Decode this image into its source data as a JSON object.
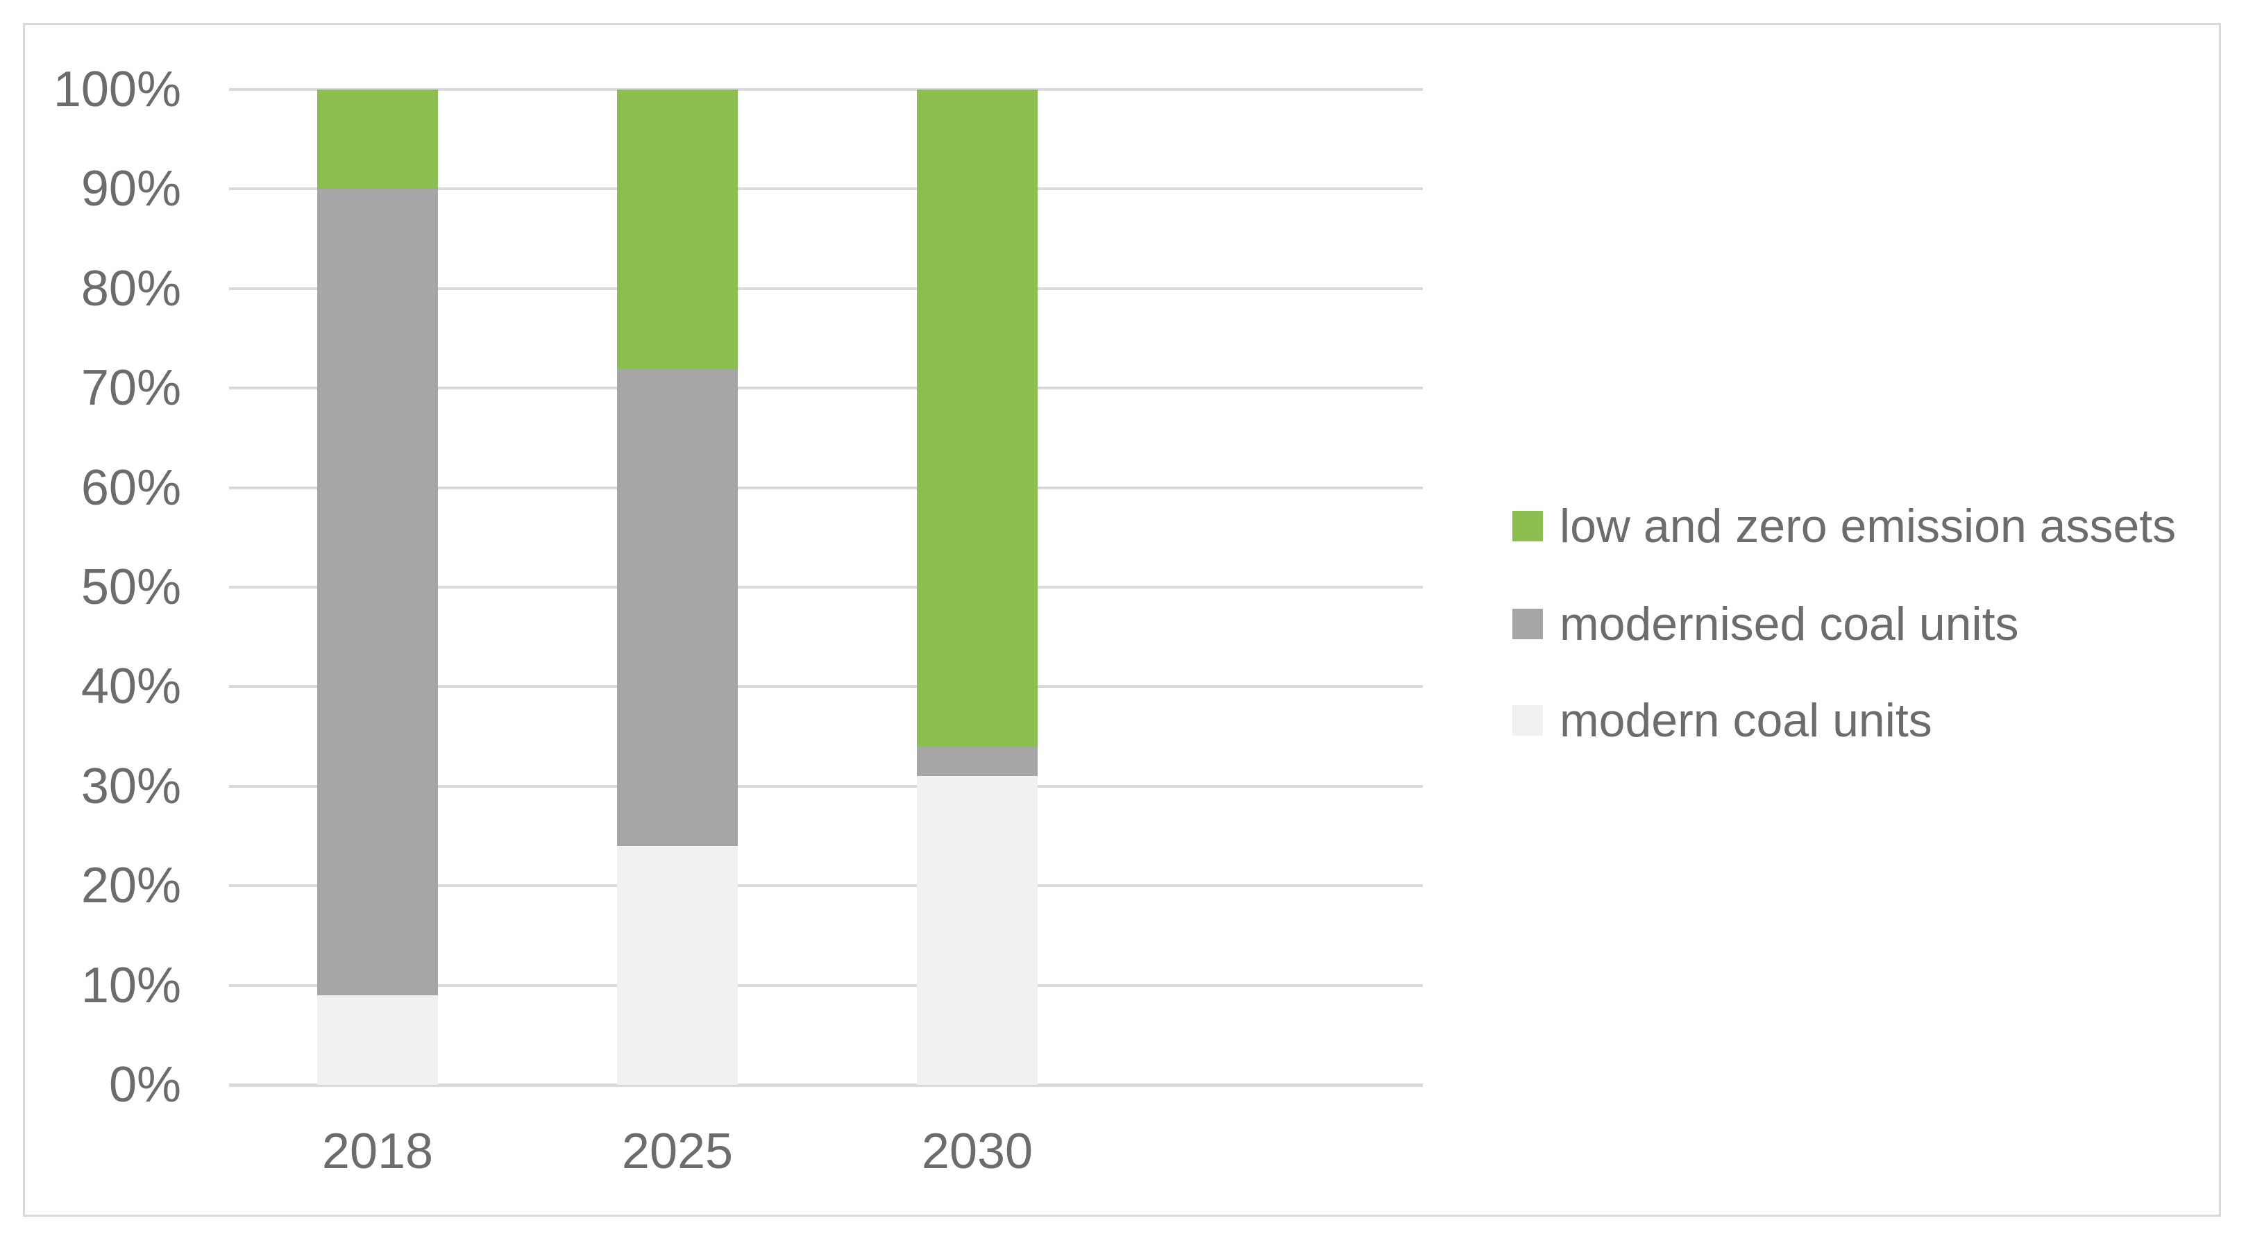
{
  "chart_data": {
    "type": "bar",
    "stacked": true,
    "units": "percent",
    "title": "",
    "xlabel": "",
    "ylabel": "",
    "categories": [
      "2018",
      "2025",
      "2030"
    ],
    "series": [
      {
        "name": "modern coal units",
        "color": "#F1F1F1",
        "values": [
          9,
          24,
          31
        ]
      },
      {
        "name": "modernised coal units",
        "color": "#A6A6A6",
        "values": [
          81,
          48,
          3
        ]
      },
      {
        "name": "low and zero emission assets",
        "color": "#8CBE50",
        "values": [
          10,
          28,
          66
        ]
      }
    ],
    "y_axis": {
      "min": 0,
      "max": 100,
      "step": 10,
      "tick_labels": [
        "0%",
        "10%",
        "20%",
        "30%",
        "40%",
        "50%",
        "60%",
        "70%",
        "80%",
        "90%",
        "100%"
      ]
    },
    "grid": true,
    "legend_position": "right"
  },
  "legend": {
    "items": [
      {
        "label": "low and zero emission assets",
        "color": "#8CBE50"
      },
      {
        "label": "modernised coal units",
        "color": "#A6A6A6"
      },
      {
        "label": "modern coal units",
        "color": "#F1F1F1"
      }
    ]
  },
  "colors": {
    "gridline": "#D9D9D9",
    "axis_line": "#D9D9D9",
    "frame_border": "#D9D9D9",
    "text": "#6C6C6C",
    "background": "#FFFFFF"
  }
}
